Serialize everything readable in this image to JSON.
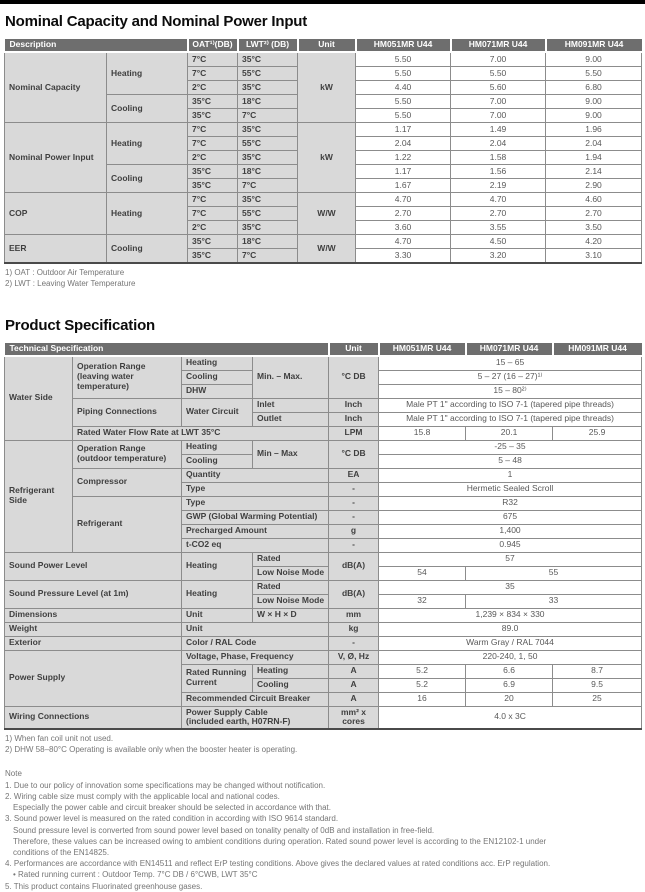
{
  "page": {
    "title_capacity": "Nominal Capacity and Nominal Power Input",
    "title_spec": "Product Specification"
  },
  "models": [
    "HM051MR U44",
    "HM071MR U44",
    "HM091MR U44"
  ],
  "colors": {
    "top_bar": "#000000",
    "header_bg": "#6e6e6e",
    "label_bg": "#d9d9d9",
    "border": "#8c8c8c",
    "value_text": "#595959",
    "note_text": "#767676"
  },
  "capacity_table": {
    "rows": [
      [
        {
          "t": "Description",
          "k": "h",
          "c": 2
        },
        {
          "t": "OAT¹⁾(DB)",
          "k": "h"
        },
        {
          "t": "LWT²⁾ (DB)",
          "k": "h"
        },
        {
          "t": "Unit",
          "k": "h"
        },
        {
          "t": "HM051MR U44",
          "k": "h"
        },
        {
          "t": "HM071MR U44",
          "k": "h"
        },
        {
          "t": "HM091MR U44",
          "k": "h"
        }
      ],
      [
        {
          "t": "Nominal Capacity",
          "k": "l",
          "r": 5
        },
        {
          "t": "Heating",
          "k": "l",
          "r": 3
        },
        {
          "t": "7°C",
          "k": "l"
        },
        {
          "t": "35°C",
          "k": "l"
        },
        {
          "t": "kW",
          "k": "u",
          "r": 5
        },
        {
          "t": "5.50"
        },
        {
          "t": "7.00"
        },
        {
          "t": "9.00"
        }
      ],
      [
        {
          "t": "7°C",
          "k": "l"
        },
        {
          "t": "55°C",
          "k": "l"
        },
        {
          "t": "5.50"
        },
        {
          "t": "5.50"
        },
        {
          "t": "5.50"
        }
      ],
      [
        {
          "t": "2°C",
          "k": "l"
        },
        {
          "t": "35°C",
          "k": "l"
        },
        {
          "t": "4.40"
        },
        {
          "t": "5.60"
        },
        {
          "t": "6.80"
        }
      ],
      [
        {
          "t": "Cooling",
          "k": "l",
          "r": 2
        },
        {
          "t": "35°C",
          "k": "l"
        },
        {
          "t": "18°C",
          "k": "l"
        },
        {
          "t": "5.50"
        },
        {
          "t": "7.00"
        },
        {
          "t": "9.00"
        }
      ],
      [
        {
          "t": "35°C",
          "k": "l"
        },
        {
          "t": "7°C",
          "k": "l"
        },
        {
          "t": "5.50"
        },
        {
          "t": "7.00"
        },
        {
          "t": "9.00"
        }
      ],
      [
        {
          "t": "Nominal Power Input",
          "k": "l",
          "r": 5
        },
        {
          "t": "Heating",
          "k": "l",
          "r": 3
        },
        {
          "t": "7°C",
          "k": "l"
        },
        {
          "t": "35°C",
          "k": "l"
        },
        {
          "t": "kW",
          "k": "u",
          "r": 5
        },
        {
          "t": "1.17"
        },
        {
          "t": "1.49"
        },
        {
          "t": "1.96"
        }
      ],
      [
        {
          "t": "7°C",
          "k": "l"
        },
        {
          "t": "55°C",
          "k": "l"
        },
        {
          "t": "2.04"
        },
        {
          "t": "2.04"
        },
        {
          "t": "2.04"
        }
      ],
      [
        {
          "t": "2°C",
          "k": "l"
        },
        {
          "t": "35°C",
          "k": "l"
        },
        {
          "t": "1.22"
        },
        {
          "t": "1.58"
        },
        {
          "t": "1.94"
        }
      ],
      [
        {
          "t": "Cooling",
          "k": "l",
          "r": 2
        },
        {
          "t": "35°C",
          "k": "l"
        },
        {
          "t": "18°C",
          "k": "l"
        },
        {
          "t": "1.17"
        },
        {
          "t": "1.56"
        },
        {
          "t": "2.14"
        }
      ],
      [
        {
          "t": "35°C",
          "k": "l"
        },
        {
          "t": "7°C",
          "k": "l"
        },
        {
          "t": "1.67"
        },
        {
          "t": "2.19"
        },
        {
          "t": "2.90"
        }
      ],
      [
        {
          "t": "COP",
          "k": "l",
          "r": 3
        },
        {
          "t": "Heating",
          "k": "l",
          "r": 3
        },
        {
          "t": "7°C",
          "k": "l"
        },
        {
          "t": "35°C",
          "k": "l"
        },
        {
          "t": "W/W",
          "k": "u",
          "r": 3
        },
        {
          "t": "4.70"
        },
        {
          "t": "4.70"
        },
        {
          "t": "4.60"
        }
      ],
      [
        {
          "t": "7°C",
          "k": "l"
        },
        {
          "t": "55°C",
          "k": "l"
        },
        {
          "t": "2.70"
        },
        {
          "t": "2.70"
        },
        {
          "t": "2.70"
        }
      ],
      [
        {
          "t": "2°C",
          "k": "l"
        },
        {
          "t": "35°C",
          "k": "l"
        },
        {
          "t": "3.60"
        },
        {
          "t": "3.55"
        },
        {
          "t": "3.50"
        }
      ],
      [
        {
          "t": "EER",
          "k": "l",
          "r": 2
        },
        {
          "t": "Cooling",
          "k": "l",
          "r": 2
        },
        {
          "t": "35°C",
          "k": "l"
        },
        {
          "t": "18°C",
          "k": "l"
        },
        {
          "t": "W/W",
          "k": "u",
          "r": 2
        },
        {
          "t": "4.70"
        },
        {
          "t": "4.50"
        },
        {
          "t": "4.20"
        }
      ],
      [
        {
          "t": "35°C",
          "k": "l"
        },
        {
          "t": "7°C",
          "k": "l"
        },
        {
          "t": "3.30"
        },
        {
          "t": "3.20"
        },
        {
          "t": "3.10"
        }
      ]
    ],
    "footnotes": [
      "1) OAT : Outdoor Air Temperature",
      "2) LWT : Leaving Water Temperature"
    ]
  },
  "spec_table": {
    "rows": [
      [
        {
          "t": "Technical Specification",
          "k": "h",
          "c": 4
        },
        {
          "t": "Unit",
          "k": "h"
        },
        {
          "t": "HM051MR U44",
          "k": "h"
        },
        {
          "t": "HM071MR U44",
          "k": "h"
        },
        {
          "t": "HM091MR U44",
          "k": "h"
        }
      ],
      [
        {
          "t": "Water Side",
          "k": "l",
          "r": 6
        },
        {
          "t": "Operation Range\n(leaving water\ntemperature)",
          "k": "l",
          "r": 3
        },
        {
          "t": "Heating",
          "k": "l"
        },
        {
          "t": "Min. – Max.",
          "k": "l",
          "r": 3
        },
        {
          "t": "°C DB",
          "k": "u",
          "r": 3
        },
        {
          "t": "15 – 65",
          "c": 3
        }
      ],
      [
        {
          "t": "Cooling",
          "k": "l"
        },
        {
          "t": "5 – 27 (16 – 27)¹⁾",
          "c": 3
        }
      ],
      [
        {
          "t": "DHW",
          "k": "l"
        },
        {
          "t": "15 – 80²⁾",
          "c": 3
        }
      ],
      [
        {
          "t": "Piping Connections",
          "k": "l",
          "r": 2
        },
        {
          "t": "Water Circuit",
          "k": "l",
          "r": 2
        },
        {
          "t": "Inlet",
          "k": "l"
        },
        {
          "t": "Inch",
          "k": "u"
        },
        {
          "t": "Male PT 1\" according to ISO 7-1 (tapered pipe threads)",
          "c": 3
        }
      ],
      [
        {
          "t": "Outlet",
          "k": "l"
        },
        {
          "t": "Inch",
          "k": "u"
        },
        {
          "t": "Male PT 1\" according to ISO 7-1 (tapered pipe threads)",
          "c": 3
        }
      ],
      [
        {
          "t": "Rated Water Flow Rate at LWT 35°C",
          "k": "l",
          "c": 3
        },
        {
          "t": "LPM",
          "k": "u"
        },
        {
          "t": "15.8"
        },
        {
          "t": "20.1"
        },
        {
          "t": "25.9"
        }
      ],
      [
        {
          "t": "Refrigerant\nSide",
          "k": "l",
          "r": 8
        },
        {
          "t": "Operation Range\n(outdoor temperature)",
          "k": "l",
          "r": 2
        },
        {
          "t": "Heating",
          "k": "l"
        },
        {
          "t": "Min – Max",
          "k": "l",
          "r": 2
        },
        {
          "t": "°C DB",
          "k": "u",
          "r": 2
        },
        {
          "t": "-25 – 35",
          "c": 3
        }
      ],
      [
        {
          "t": "Cooling",
          "k": "l"
        },
        {
          "t": "5 – 48",
          "c": 3
        }
      ],
      [
        {
          "t": "Compressor",
          "k": "l",
          "r": 2
        },
        {
          "t": "Quantity",
          "k": "l",
          "c": 2
        },
        {
          "t": "EA",
          "k": "u"
        },
        {
          "t": "1",
          "c": 3
        }
      ],
      [
        {
          "t": "Type",
          "k": "l",
          "c": 2
        },
        {
          "t": "-",
          "k": "u"
        },
        {
          "t": "Hermetic Sealed Scroll",
          "c": 3
        }
      ],
      [
        {
          "t": "Refrigerant",
          "k": "l",
          "r": 4
        },
        {
          "t": "Type",
          "k": "l",
          "c": 2
        },
        {
          "t": "-",
          "k": "u"
        },
        {
          "t": "R32",
          "c": 3
        }
      ],
      [
        {
          "t": "GWP (Global Warming Potential)",
          "k": "l",
          "c": 2
        },
        {
          "t": "-",
          "k": "u"
        },
        {
          "t": "675",
          "c": 3
        }
      ],
      [
        {
          "t": "Precharged Amount",
          "k": "l",
          "c": 2
        },
        {
          "t": "g",
          "k": "u"
        },
        {
          "t": "1,400",
          "c": 3
        }
      ],
      [
        {
          "t": "t-CO2 eq",
          "k": "l",
          "c": 2
        },
        {
          "t": "-",
          "k": "u"
        },
        {
          "t": "0.945",
          "c": 3
        }
      ],
      [
        {
          "t": "Sound Power Level",
          "k": "l",
          "c": 2,
          "r": 2
        },
        {
          "t": "Heating",
          "k": "l",
          "r": 2
        },
        {
          "t": "Rated",
          "k": "l"
        },
        {
          "t": "dB(A)",
          "k": "u",
          "r": 2
        },
        {
          "t": "57",
          "c": 3
        }
      ],
      [
        {
          "t": "Low Noise Mode",
          "k": "l"
        },
        {
          "t": "54"
        },
        {
          "t": "55",
          "c": 2
        }
      ],
      [
        {
          "t": "Sound Pressure Level (at 1m)",
          "k": "l",
          "c": 2,
          "r": 2
        },
        {
          "t": "Heating",
          "k": "l",
          "r": 2
        },
        {
          "t": "Rated",
          "k": "l"
        },
        {
          "t": "dB(A)",
          "k": "u",
          "r": 2
        },
        {
          "t": "35",
          "c": 3
        }
      ],
      [
        {
          "t": "Low Noise Mode",
          "k": "l"
        },
        {
          "t": "32"
        },
        {
          "t": "33",
          "c": 2
        }
      ],
      [
        {
          "t": "Dimensions",
          "k": "l",
          "c": 2
        },
        {
          "t": "Unit",
          "k": "l"
        },
        {
          "t": "W × H × D",
          "k": "l"
        },
        {
          "t": "mm",
          "k": "u"
        },
        {
          "t": "1,239 × 834 × 330",
          "c": 3
        }
      ],
      [
        {
          "t": "Weight",
          "k": "l",
          "c": 2
        },
        {
          "t": "Unit",
          "k": "l",
          "c": 2
        },
        {
          "t": "kg",
          "k": "u"
        },
        {
          "t": "89.0",
          "c": 3
        }
      ],
      [
        {
          "t": "Exterior",
          "k": "l",
          "c": 2
        },
        {
          "t": "Color / RAL Code",
          "k": "l",
          "c": 2
        },
        {
          "t": "-",
          "k": "u"
        },
        {
          "t": "Warm Gray / RAL 7044",
          "c": 3
        }
      ],
      [
        {
          "t": "Power Supply",
          "k": "l",
          "c": 2,
          "r": 4
        },
        {
          "t": "Voltage, Phase, Frequency",
          "k": "l",
          "c": 2
        },
        {
          "t": "V, Ø, Hz",
          "k": "u"
        },
        {
          "t": "220-240, 1, 50",
          "c": 3
        }
      ],
      [
        {
          "t": "Rated Running\nCurrent",
          "k": "l",
          "r": 2
        },
        {
          "t": "Heating",
          "k": "l"
        },
        {
          "t": "A",
          "k": "u"
        },
        {
          "t": "5.2"
        },
        {
          "t": "6.6"
        },
        {
          "t": "8.7"
        }
      ],
      [
        {
          "t": "Cooling",
          "k": "l"
        },
        {
          "t": "A",
          "k": "u"
        },
        {
          "t": "5.2"
        },
        {
          "t": "6.9"
        },
        {
          "t": "9.5"
        }
      ],
      [
        {
          "t": "Recommended Circuit Breaker",
          "k": "l",
          "c": 2
        },
        {
          "t": "A",
          "k": "u"
        },
        {
          "t": "16"
        },
        {
          "t": "20"
        },
        {
          "t": "25"
        }
      ],
      [
        {
          "t": "Wiring Connections",
          "k": "l",
          "c": 2
        },
        {
          "t": "Power Supply Cable\n(included earth, H07RN-F)",
          "k": "l",
          "c": 2
        },
        {
          "t": "mm² x cores",
          "k": "u"
        },
        {
          "t": "4.0 x 3C",
          "c": 3
        }
      ]
    ],
    "footnotes": [
      "1) When fan coil unit not used.",
      "2) DHW 58–80°C Operating is available only when the booster heater is operating."
    ]
  },
  "notes": {
    "label": "Note",
    "lines": [
      {
        "text": "1. Due to our policy of innovation some specifications may be changed without notification.",
        "indent": false
      },
      {
        "text": "2. Wiring cable size must comply with the applicable local and national codes.",
        "indent": false
      },
      {
        "text": "Especially the power cable and circuit breaker should be selected in accordance with that.",
        "indent": true
      },
      {
        "text": "3. Sound power level is measured on the rated condition in according with ISO 9614 standard.",
        "indent": false
      },
      {
        "text": "Sound pressure level is converted from sound power level based on tonality penalty of 0dB and installation in free-field.",
        "indent": true
      },
      {
        "text": "Therefore, these values can be increased owing to ambient conditions during operation. Rated sound power level is according to the EN12102-1 under",
        "indent": true
      },
      {
        "text": "conditions of the EN14825.",
        "indent": true
      },
      {
        "text": "4. Performances are accordance with EN14511 and reflect ErP testing conditions. Above gives the declared values at rated conditions acc. ErP regulation.",
        "indent": false
      },
      {
        "text": "• Rated running current : Outdoor Temp. 7°C DB / 6°CWB, LWT 35°C",
        "indent": true
      },
      {
        "text": "5. This product contains Fluorinated greenhouse gases.",
        "indent": false
      }
    ]
  }
}
